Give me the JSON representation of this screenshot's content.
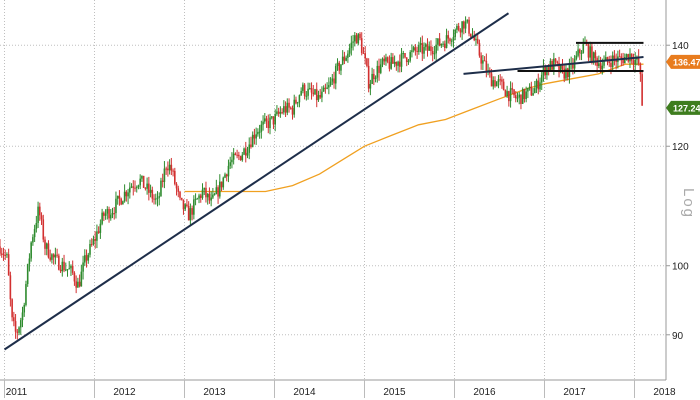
{
  "chart_data": {
    "type": "candlestick",
    "scale": "log",
    "scale_label": "Log",
    "ylim": [
      84,
      150
    ],
    "xlim": [
      2010.95,
      2018.35
    ],
    "grid": true,
    "y_ticks": [
      90,
      100,
      120,
      140
    ],
    "x_ticks": [
      {
        "label": "2011",
        "x": 2011.0
      },
      {
        "label": "2012",
        "x": 2012.0
      },
      {
        "label": "2013",
        "x": 2013.0
      },
      {
        "label": "2014",
        "x": 2014.0
      },
      {
        "label": "2015",
        "x": 2015.0
      },
      {
        "label": "2016",
        "x": 2016.0
      },
      {
        "label": "2017",
        "x": 2017.0
      },
      {
        "label": "2018",
        "x": 2018.0
      }
    ],
    "price_path": [
      [
        2010.95,
        103
      ],
      [
        2011.03,
        101
      ],
      [
        2011.08,
        92
      ],
      [
        2011.13,
        90
      ],
      [
        2011.2,
        93
      ],
      [
        2011.3,
        104
      ],
      [
        2011.38,
        109
      ],
      [
        2011.45,
        103
      ],
      [
        2011.55,
        101
      ],
      [
        2011.65,
        100
      ],
      [
        2011.75,
        99
      ],
      [
        2011.82,
        97
      ],
      [
        2011.9,
        101
      ],
      [
        2012.0,
        104
      ],
      [
        2012.1,
        108
      ],
      [
        2012.2,
        109
      ],
      [
        2012.3,
        111
      ],
      [
        2012.4,
        113
      ],
      [
        2012.5,
        114
      ],
      [
        2012.6,
        112
      ],
      [
        2012.7,
        110
      ],
      [
        2012.8,
        117
      ],
      [
        2012.85,
        116
      ],
      [
        2012.95,
        110
      ],
      [
        2013.05,
        108
      ],
      [
        2013.12,
        110
      ],
      [
        2013.2,
        112
      ],
      [
        2013.3,
        110
      ],
      [
        2013.4,
        113
      ],
      [
        2013.5,
        117
      ],
      [
        2013.6,
        118
      ],
      [
        2013.7,
        120
      ],
      [
        2013.8,
        123
      ],
      [
        2013.9,
        124
      ],
      [
        2014.0,
        125
      ],
      [
        2014.1,
        127
      ],
      [
        2014.2,
        127
      ],
      [
        2014.3,
        131
      ],
      [
        2014.4,
        130
      ],
      [
        2014.5,
        129
      ],
      [
        2014.6,
        131
      ],
      [
        2014.7,
        135
      ],
      [
        2014.8,
        138
      ],
      [
        2014.9,
        142
      ],
      [
        2014.95,
        141
      ],
      [
        2015.0,
        137
      ],
      [
        2015.05,
        132
      ],
      [
        2015.1,
        134
      ],
      [
        2015.2,
        136
      ],
      [
        2015.3,
        136
      ],
      [
        2015.4,
        137
      ],
      [
        2015.5,
        138
      ],
      [
        2015.6,
        139
      ],
      [
        2015.7,
        139
      ],
      [
        2015.8,
        140
      ],
      [
        2015.9,
        141
      ],
      [
        2016.0,
        143
      ],
      [
        2016.1,
        145
      ],
      [
        2016.15,
        144
      ],
      [
        2016.2,
        142
      ],
      [
        2016.3,
        137
      ],
      [
        2016.4,
        133
      ],
      [
        2016.5,
        132
      ],
      [
        2016.6,
        130
      ],
      [
        2016.7,
        129
      ],
      [
        2016.8,
        130
      ],
      [
        2016.9,
        131
      ],
      [
        2017.0,
        135
      ],
      [
        2017.1,
        136
      ],
      [
        2017.2,
        134
      ],
      [
        2017.3,
        135
      ],
      [
        2017.4,
        139
      ],
      [
        2017.45,
        140
      ],
      [
        2017.55,
        137
      ],
      [
        2017.65,
        136
      ],
      [
        2017.75,
        137
      ],
      [
        2017.85,
        137
      ],
      [
        2017.95,
        138
      ],
      [
        2018.0,
        137
      ],
      [
        2018.05,
        136
      ],
      [
        2018.08,
        130
      ],
      [
        2018.1,
        121
      ]
    ],
    "moving_average": {
      "color": "#f0a020",
      "points": [
        [
          2013.0,
          112
        ],
        [
          2013.5,
          112
        ],
        [
          2013.9,
          112
        ],
        [
          2014.2,
          113
        ],
        [
          2014.5,
          115
        ],
        [
          2014.8,
          118
        ],
        [
          2015.0,
          120
        ],
        [
          2015.3,
          122
        ],
        [
          2015.6,
          124
        ],
        [
          2015.9,
          125
        ],
        [
          2016.2,
          127
        ],
        [
          2016.5,
          129
        ],
        [
          2016.8,
          131
        ],
        [
          2017.0,
          132
        ],
        [
          2017.3,
          133
        ],
        [
          2017.6,
          134
        ],
        [
          2017.9,
          136
        ],
        [
          2018.1,
          136
        ]
      ]
    },
    "trendlines": [
      {
        "color": "#1e2e4a",
        "from": [
          2011.0,
          88
        ],
        "to": [
          2016.6,
          147
        ]
      },
      {
        "color": "#1e2e4a",
        "from": [
          2016.1,
          134
        ],
        "to": [
          2018.1,
          137.5
        ]
      }
    ],
    "horizontal_levels": [
      {
        "color": "#111111",
        "y": 140.5,
        "x_from": 2017.35,
        "x_to": 2018.1
      },
      {
        "color": "#111111",
        "y": 134.6,
        "x_from": 2016.7,
        "x_to": 2018.1
      }
    ],
    "badges": [
      {
        "label": "136.4749",
        "y": 136.4749,
        "color": "#e87c1e"
      },
      {
        "label": "127.2400",
        "y": 127.24,
        "color": "#3e7d1e"
      }
    ],
    "colors": {
      "up": "#2e8b2e",
      "down": "#d23030",
      "grid": "#bfbfbf"
    }
  }
}
